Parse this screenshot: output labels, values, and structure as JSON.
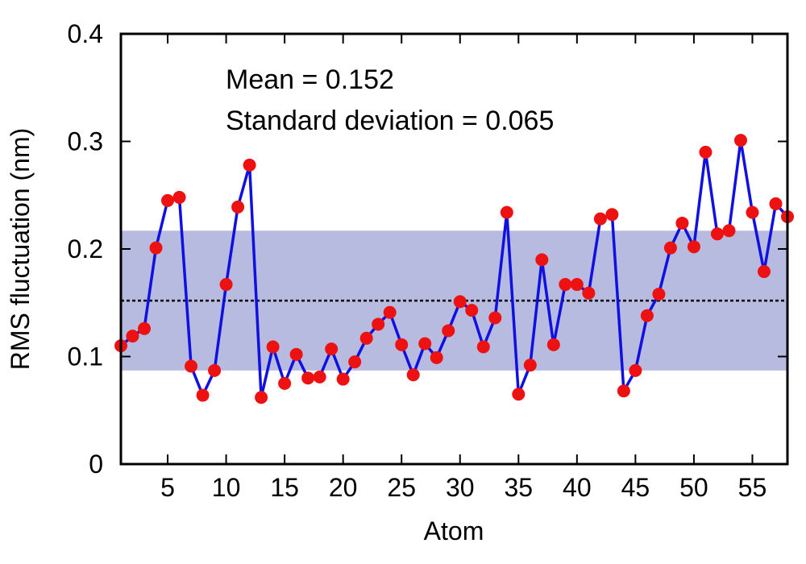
{
  "chart_data": {
    "type": "line",
    "xlabel": "Atom",
    "ylabel": "RMS fluctuation (nm)",
    "xlim": [
      1,
      58
    ],
    "ylim": [
      0,
      0.4
    ],
    "xticks": [
      5,
      10,
      15,
      20,
      25,
      30,
      35,
      40,
      45,
      50,
      55
    ],
    "yticks": [
      0,
      0.1,
      0.2,
      0.3,
      0.4
    ],
    "ytick_labels": [
      "0",
      "0.1",
      "0.2",
      "0.3",
      "0.4"
    ],
    "annotations": [
      "Mean = 0.152",
      "Standard deviation = 0.065"
    ],
    "mean": 0.152,
    "std_band": [
      0.087,
      0.217
    ],
    "colors": {
      "line": "#1010e0",
      "marker": "#ee1111",
      "band": "#b8bbe0",
      "mean_line": "#000000"
    },
    "series": [
      {
        "x": [
          1,
          2,
          3,
          4,
          5,
          6,
          7,
          8,
          9,
          10,
          11,
          12,
          13,
          14,
          15,
          16,
          17,
          18,
          19,
          20,
          21,
          22,
          23,
          24,
          25,
          26,
          27,
          28,
          29,
          30,
          31,
          32,
          33,
          34,
          35,
          36,
          37,
          38,
          39,
          40,
          41,
          42,
          43,
          44,
          45,
          46,
          47,
          48,
          49,
          50,
          51,
          52,
          53,
          54,
          55,
          56,
          57,
          58
        ],
        "values": [
          0.11,
          0.119,
          0.126,
          0.201,
          0.245,
          0.248,
          0.091,
          0.064,
          0.087,
          0.167,
          0.239,
          0.278,
          0.062,
          0.109,
          0.075,
          0.102,
          0.08,
          0.081,
          0.107,
          0.079,
          0.095,
          0.117,
          0.13,
          0.141,
          0.111,
          0.083,
          0.112,
          0.099,
          0.124,
          0.151,
          0.143,
          0.109,
          0.136,
          0.234,
          0.065,
          0.092,
          0.19,
          0.111,
          0.167,
          0.167,
          0.159,
          0.228,
          0.232,
          0.068,
          0.087,
          0.138,
          0.158,
          0.201,
          0.224,
          0.202,
          0.29,
          0.214,
          0.217,
          0.301,
          0.234,
          0.179,
          0.242,
          0.23
        ]
      }
    ]
  }
}
